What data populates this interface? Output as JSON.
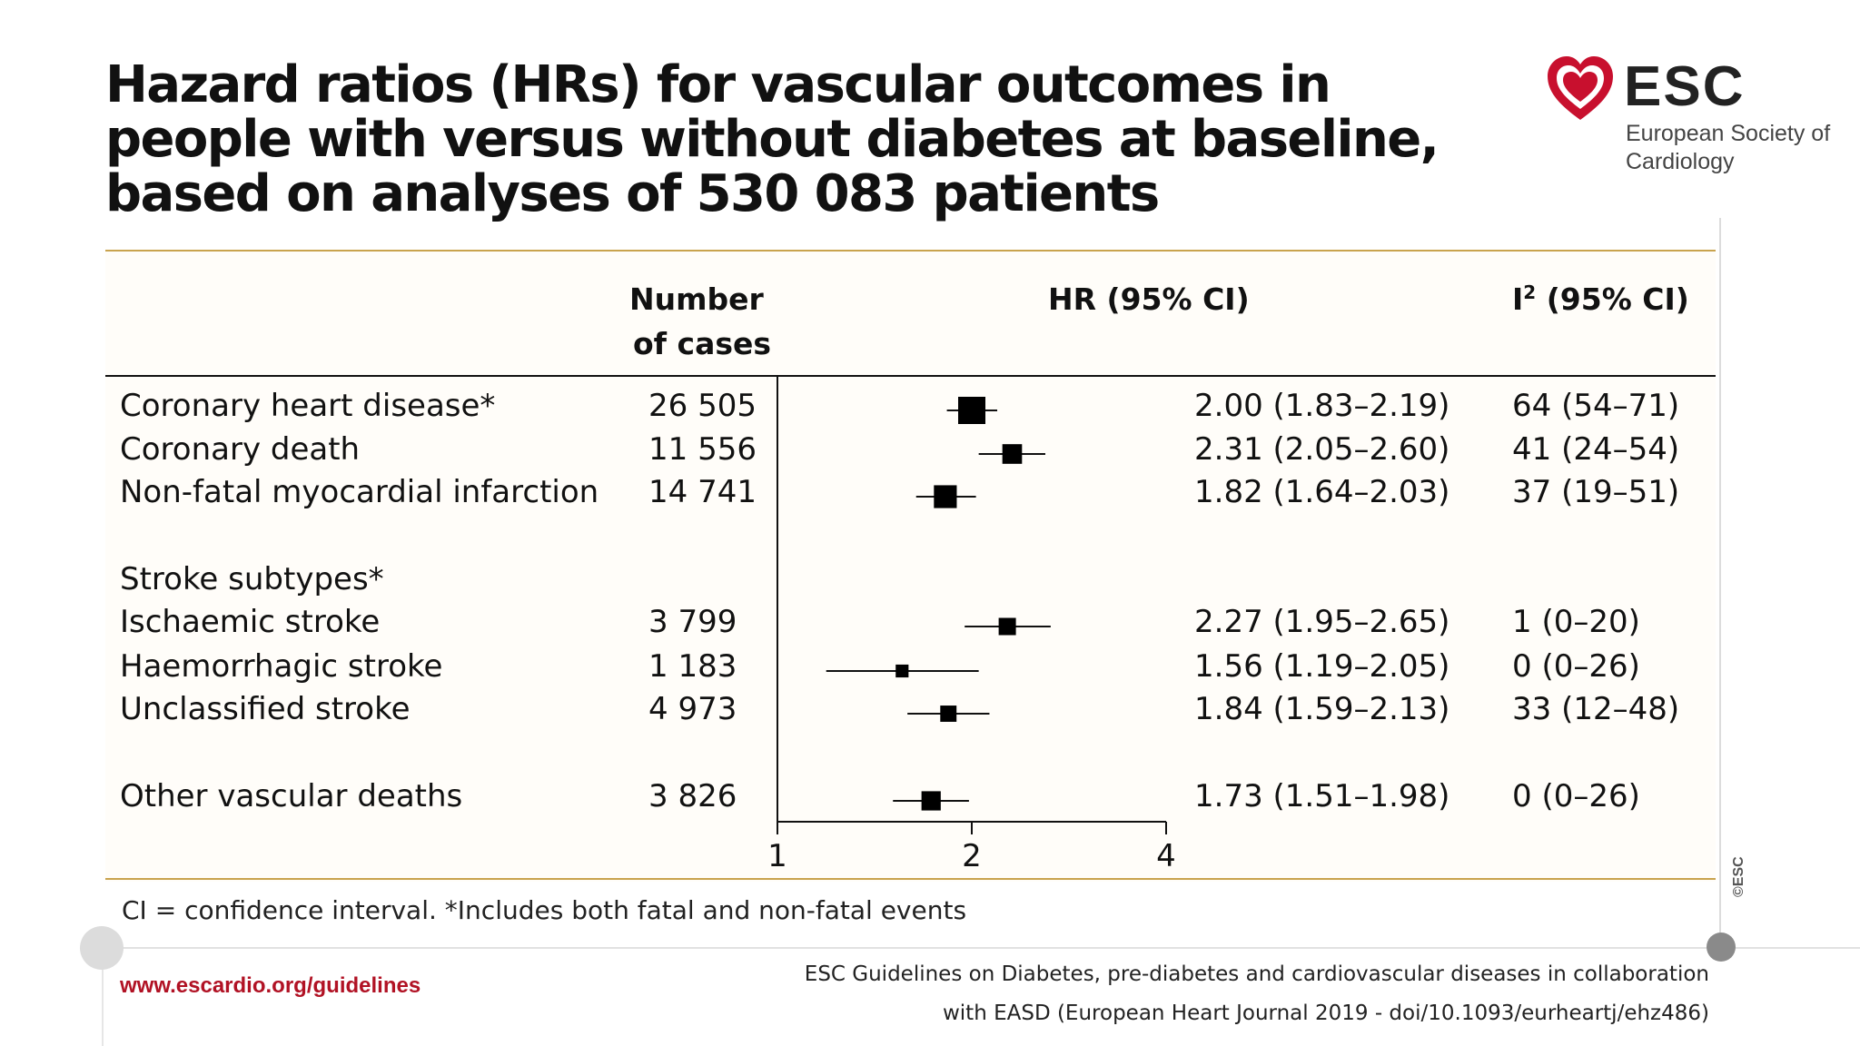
{
  "title": "Hazard ratios (HRs) for vascular outcomes in people with versus without diabetes at baseline, based on analyses of 530 083 patients",
  "logo": {
    "abbr": "ESC",
    "name": "European Society of Cardiology",
    "color": "#c8102e"
  },
  "headers": {
    "cases_line1": "Number",
    "cases_line2": "of cases",
    "hr": "HR (95% CI)",
    "i2_prefix": "I",
    "i2_sup": "2",
    "i2_suffix": " (95% CI)"
  },
  "chart_data": {
    "type": "forest",
    "x_scale": "log",
    "xlim": [
      1,
      4
    ],
    "x_ticks": [
      1,
      2,
      4
    ],
    "reference_line": 1,
    "rows": [
      {
        "label": "Coronary heart disease*",
        "cases": "26 505",
        "hr": 2.0,
        "lo": 1.83,
        "hi": 2.19,
        "hr_text": "2.00 (1.83–2.19)",
        "i2_text": "64 (54–71)",
        "weight": 1.0
      },
      {
        "label": "Coronary death",
        "cases": "11 556",
        "hr": 2.31,
        "lo": 2.05,
        "hi": 2.6,
        "hr_text": "2.31 (2.05–2.60)",
        "i2_text": "41 (24–54)",
        "weight": 0.62
      },
      {
        "label": "Non-fatal myocardial infarction",
        "cases": "14 741",
        "hr": 1.82,
        "lo": 1.64,
        "hi": 2.03,
        "hr_text": "1.82 (1.64–2.03)",
        "i2_text": "37 (19–51)",
        "weight": 0.78
      },
      {
        "label": "Stroke subtypes*",
        "cases": "",
        "hr": null,
        "lo": null,
        "hi": null,
        "hr_text": "",
        "i2_text": "",
        "weight": 0
      },
      {
        "label": "Ischaemic stroke",
        "cases": "3 799",
        "hr": 2.27,
        "lo": 1.95,
        "hi": 2.65,
        "hr_text": "2.27 (1.95–2.65)",
        "i2_text": "1 (0–20)",
        "weight": 0.5
      },
      {
        "label": "Haemorrhagic stroke",
        "cases": "1 183",
        "hr": 1.56,
        "lo": 1.19,
        "hi": 2.05,
        "hr_text": "1.56 (1.19–2.05)",
        "i2_text": "0 (0–26)",
        "weight": 0.28
      },
      {
        "label": "Unclassified stroke",
        "cases": "4 973",
        "hr": 1.84,
        "lo": 1.59,
        "hi": 2.13,
        "hr_text": "1.84 (1.59–2.13)",
        "i2_text": "33 (12–48)",
        "weight": 0.45
      },
      {
        "label": "Other vascular deaths",
        "cases": "3 826",
        "hr": 1.73,
        "lo": 1.51,
        "hi": 1.98,
        "hr_text": "1.73 (1.51–1.98)",
        "i2_text": "0 (0–26)",
        "weight": 0.6
      }
    ]
  },
  "footnote": "CI = confidence interval. *Includes both fatal and non-fatal events",
  "url": "www.escardio.org/guidelines",
  "citation": {
    "line1": "ESC Guidelines on Diabetes, pre-diabetes and cardiovascular diseases in collaboration",
    "line2": "with EASD (European Heart Journal 2019 - doi/10.1093/eurheartj/ehz486)"
  },
  "copyright": "©ESC"
}
